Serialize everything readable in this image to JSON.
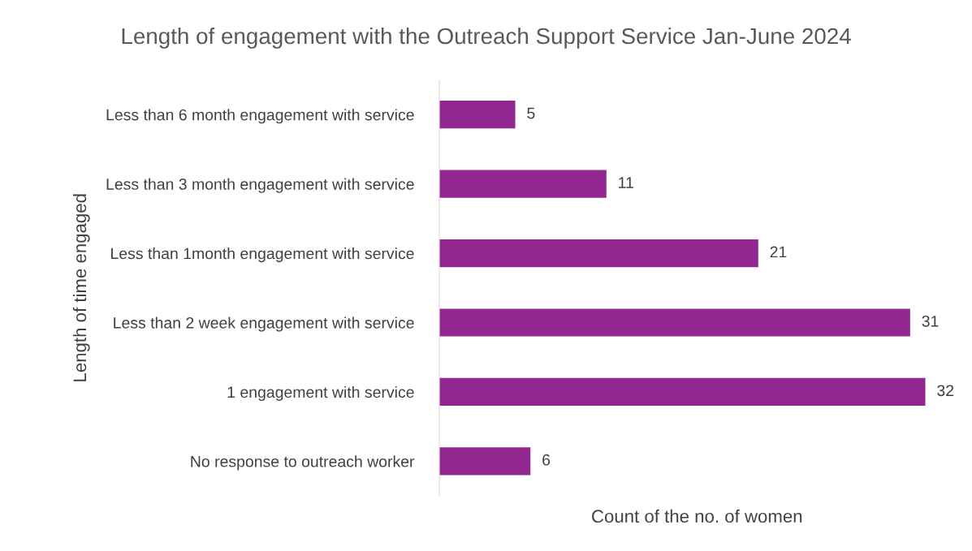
{
  "chart_data": {
    "type": "bar",
    "orientation": "horizontal",
    "title": "Length of engagement with the Outreach Support Service Jan-June 2024",
    "xlabel": "Count of the no. of women",
    "ylabel": "Length of time engaged",
    "categories": [
      "Less than 6 month engagement with service",
      "Less than 3 month engagement with service",
      "Less than 1month engagement with service",
      "Less than 2 week engagement with service",
      "1 engagement with service",
      "No response to outreach worker"
    ],
    "values": [
      5,
      11,
      21,
      31,
      32,
      6
    ],
    "color": "#92278f",
    "data_labels": true,
    "tick_labels": "y",
    "grid": false,
    "legend": false
  }
}
